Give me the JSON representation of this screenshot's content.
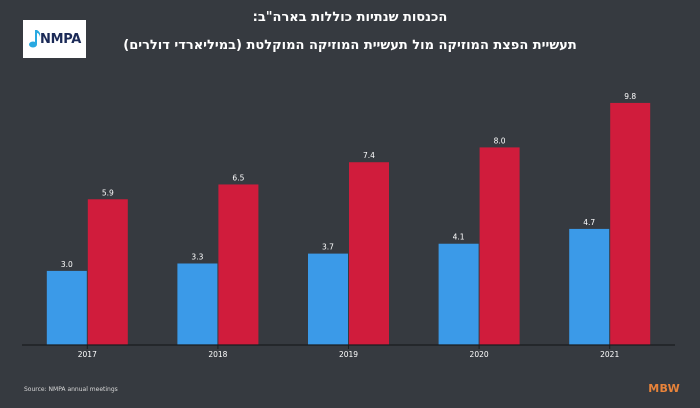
{
  "logo": {
    "text": "NMPA"
  },
  "title": {
    "line1": "הכנסות שנתיות כוללות בארה\"ב:",
    "line2": "תעשיית הפצת המוזיקה מול תעשיית המוזיקה המוקלטת (במיליארדי דולרים)"
  },
  "colors": {
    "background": "#363a40",
    "series1": "#3b9ae8",
    "series2": "#d01c3c",
    "axis": "#1a1c1f",
    "label": "#ffffff"
  },
  "chart_data": {
    "type": "bar",
    "categories": [
      "2017",
      "2018",
      "2019",
      "2020",
      "2021"
    ],
    "series": [
      {
        "values": [
          3.0,
          3.3,
          3.7,
          4.1,
          4.7
        ],
        "color": "#3b9ae8"
      },
      {
        "values": [
          5.9,
          6.5,
          7.4,
          8.0,
          9.8
        ],
        "color": "#d01c3c"
      }
    ],
    "value_labels": [
      [
        "3.0",
        "3.3",
        "3.7",
        "4.1",
        "4.7"
      ],
      [
        "5.9",
        "6.5",
        "7.4",
        "8.0",
        "9.8"
      ]
    ],
    "ylim": [
      0,
      10
    ],
    "grid": false,
    "legend": "none"
  },
  "footer": {
    "source": "Source: NMPA annual meetings",
    "brand": "MBW"
  }
}
